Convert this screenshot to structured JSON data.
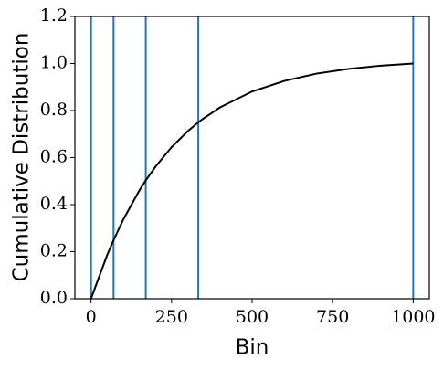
{
  "chart_data": {
    "type": "line",
    "x_label": "Bin",
    "y_label": "Cumulative Distribution",
    "x": [
      0,
      50,
      70,
      100,
      150,
      170,
      200,
      250,
      300,
      333,
      350,
      400,
      500,
      600,
      700,
      800,
      900,
      1000
    ],
    "series": [
      {
        "color": "#000000",
        "values": [
          0,
          0.185,
          0.249,
          0.336,
          0.46,
          0.503,
          0.561,
          0.644,
          0.712,
          0.75,
          0.767,
          0.813,
          0.881,
          0.926,
          0.957,
          0.977,
          0.991,
          1.0
        ]
      }
    ],
    "vlines": {
      "color": "#1f77b4",
      "values": [
        0,
        70,
        170,
        333,
        1000
      ]
    },
    "xlim": [
      -50,
      1050
    ],
    "ylim": [
      0,
      1.2
    ],
    "xticks": [
      0,
      250,
      500,
      750,
      1000
    ],
    "yticks": [
      {
        "value": 0,
        "label": "0.0"
      },
      {
        "value": 0.2,
        "label": "0.2"
      },
      {
        "value": 0.4,
        "label": "0.4"
      },
      {
        "value": 0.6,
        "label": "0.6"
      },
      {
        "value": 0.8,
        "label": "0.8"
      },
      {
        "value": 1.0,
        "label": "1.0"
      },
      {
        "value": 1.2,
        "label": "1.2"
      }
    ],
    "grid": false
  }
}
